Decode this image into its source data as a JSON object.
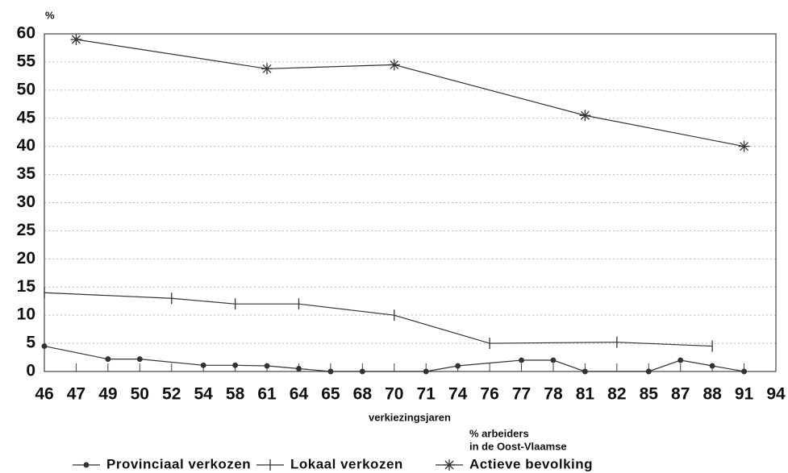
{
  "chart_data": {
    "type": "line",
    "y_unit": "%",
    "x_label": "verkiezingsjaren",
    "categories": [
      "46",
      "47",
      "49",
      "50",
      "52",
      "54",
      "58",
      "61",
      "64",
      "65",
      "68",
      "70",
      "71",
      "74",
      "76",
      "77",
      "78",
      "81",
      "82",
      "85",
      "87",
      "88",
      "91",
      "94"
    ],
    "ylim": [
      0,
      60
    ],
    "yticks": [
      0,
      5,
      10,
      15,
      20,
      25,
      30,
      35,
      40,
      45,
      50,
      55,
      60
    ],
    "grid": true,
    "series": [
      {
        "name": "Provinciaal verkozen",
        "color": "#333333",
        "marker": "dot",
        "x": [
          "46",
          "49",
          "50",
          "54",
          "58",
          "61",
          "64",
          "65",
          "68",
          "71",
          "74",
          "77",
          "78",
          "81",
          "85",
          "87",
          "88",
          "91"
        ],
        "values": [
          4.5,
          2.2,
          2.2,
          1.1,
          1.1,
          1,
          0.5,
          0,
          0,
          0,
          1,
          2,
          2,
          0,
          0,
          2,
          1,
          0
        ]
      },
      {
        "name": "Lokaal verkozen",
        "color": "#333333",
        "marker": "plus",
        "x": [
          "46",
          "52",
          "58",
          "64",
          "70",
          "76",
          "82",
          "88"
        ],
        "values": [
          14,
          13,
          12,
          12,
          10,
          5,
          5.2,
          4.5
        ]
      },
      {
        "name": "Actieve bevolking",
        "color": "#333333",
        "marker": "asterisk",
        "legend_note": [
          "% arbeiders",
          "in de Oost-Vlaamse"
        ],
        "x": [
          "47",
          "61",
          "70",
          "81",
          "91"
        ],
        "values": [
          59,
          53.8,
          54.5,
          45.5,
          40
        ]
      }
    ]
  }
}
